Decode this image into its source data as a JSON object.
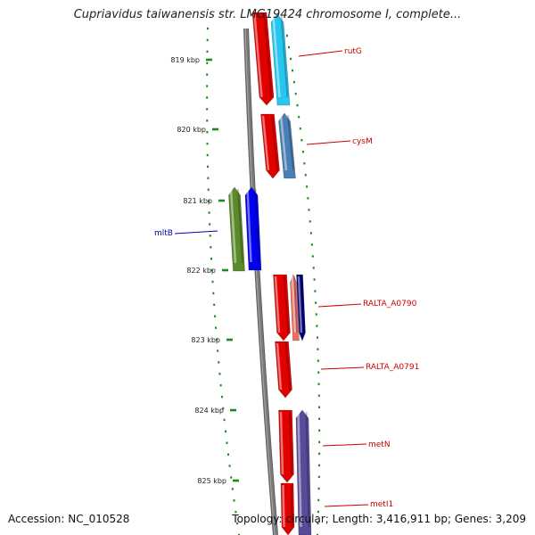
{
  "title": "Cupriavidus taiwanensis str. LMG19424 chromosome I, complete...",
  "footer": {
    "accession": "Accession: NC_010528",
    "summary": "Topology: circular; Length: 3,416,911 bp; Genes: 3,209"
  },
  "ticks": [
    {
      "label": "819 kbp"
    },
    {
      "label": "820 kbp"
    },
    {
      "label": "821 kbp"
    },
    {
      "label": "822 kbp"
    },
    {
      "label": "823 kbp"
    },
    {
      "label": "824 kbp"
    },
    {
      "label": "825 kbp"
    }
  ],
  "colors": {
    "backbone": "#7a7a7a",
    "forward_gene": "#e00000",
    "label_forward": "#cc0000",
    "label_reverse": "#0000aa",
    "dots": "#1a8a1a"
  },
  "genes": [
    {
      "name": "rutG",
      "color": "#26c6f0"
    },
    {
      "name": "cysM",
      "color": "#4a7fb5"
    },
    {
      "name": "mltB",
      "color": "#0000ee"
    },
    {
      "name": "RALTA_A0790",
      "color": "#000080"
    },
    {
      "name": "RALTA_A0791",
      "color": "#e00000"
    },
    {
      "name": "metN",
      "color": "#5a4a9a"
    },
    {
      "name": "metI1",
      "color": "#e00000"
    }
  ]
}
